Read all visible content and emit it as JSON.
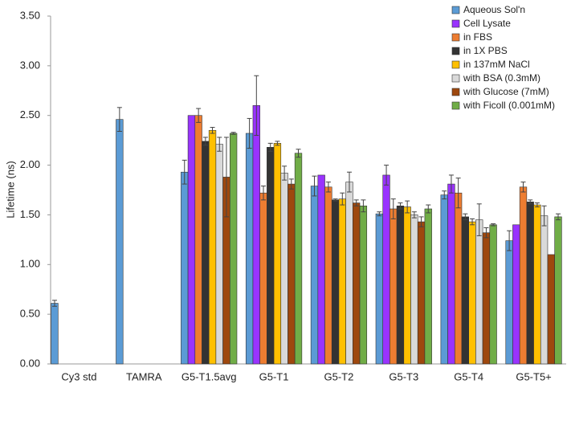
{
  "chart_data": {
    "type": "bar",
    "y_label": "Lifetime (ns)",
    "categories": [
      "Cy3 std",
      "TAMRA",
      "G5-T1.5avg",
      "G5-T1",
      "G5-T2",
      "G5-T3",
      "G5-T4",
      "G5-T5+"
    ],
    "ylim": [
      0,
      3.5
    ],
    "yticks": [
      {
        "value": 0,
        "label": "0.00"
      },
      {
        "value": 0.5,
        "label": "0.50"
      },
      {
        "value": 1,
        "label": "1.00"
      },
      {
        "value": 1.5,
        "label": "1.50"
      },
      {
        "value": 2,
        "label": "2.00"
      },
      {
        "value": 2.5,
        "label": "2.50"
      },
      {
        "value": 3,
        "label": "3.00"
      },
      {
        "value": 3.5,
        "label": "3.50"
      }
    ],
    "series": [
      {
        "name": "Aqueous Sol'n",
        "color": "#5b9bd5",
        "values": [
          0.61,
          2.46,
          1.93,
          2.32,
          1.79,
          1.51,
          1.7,
          1.24
        ],
        "errors": [
          0.03,
          0.12,
          0.12,
          0.15,
          0.1,
          0.02,
          0.04,
          0.1
        ]
      },
      {
        "name": "Cell Lysate",
        "color": "#9933ff",
        "values": [
          null,
          null,
          2.5,
          2.6,
          1.9,
          1.9,
          1.81,
          1.4
        ],
        "errors": [
          null,
          null,
          null,
          0.3,
          null,
          0.1,
          0.09,
          null
        ]
      },
      {
        "name": "in FBS",
        "color": "#ed7d31",
        "values": [
          null,
          null,
          2.5,
          1.72,
          1.78,
          1.56,
          1.72,
          1.78
        ],
        "errors": [
          null,
          null,
          0.07,
          0.07,
          0.05,
          0.1,
          0.15,
          0.05
        ]
      },
      {
        "name": "in 1X PBS",
        "color": "#333333",
        "values": [
          null,
          null,
          2.24,
          2.18,
          1.65,
          1.59,
          1.48,
          1.63
        ],
        "errors": [
          null,
          null,
          0.04,
          0.04,
          0.01,
          0.03,
          0.03,
          0.02
        ]
      },
      {
        "name": "in 137mM NaCl",
        "color": "#ffc000",
        "values": [
          null,
          null,
          2.35,
          2.22,
          1.66,
          1.58,
          1.43,
          1.6
        ],
        "errors": [
          null,
          null,
          0.03,
          0.02,
          0.06,
          0.06,
          0.03,
          0.02
        ]
      },
      {
        "name": "with BSA (0.3mM)",
        "color": "#d9d9d9",
        "values": [
          null,
          null,
          2.21,
          1.92,
          1.83,
          1.5,
          1.45,
          1.49
        ],
        "errors": [
          null,
          null,
          0.07,
          0.07,
          0.1,
          0.03,
          0.16,
          0.1
        ]
      },
      {
        "name": "with Glucose (7mM)",
        "color": "#9e480e",
        "values": [
          null,
          null,
          1.88,
          1.81,
          1.62,
          1.43,
          1.32,
          1.1
        ],
        "errors": [
          null,
          null,
          0.4,
          0.05,
          0.03,
          0.05,
          0.05,
          null
        ]
      },
      {
        "name": "with Ficoll (0.001mM)",
        "color": "#70ad47",
        "values": [
          null,
          null,
          2.32,
          2.12,
          1.59,
          1.56,
          1.4,
          1.48
        ],
        "errors": [
          null,
          null,
          0.01,
          0.04,
          0.06,
          0.04,
          0.01,
          0.03
        ]
      }
    ]
  }
}
